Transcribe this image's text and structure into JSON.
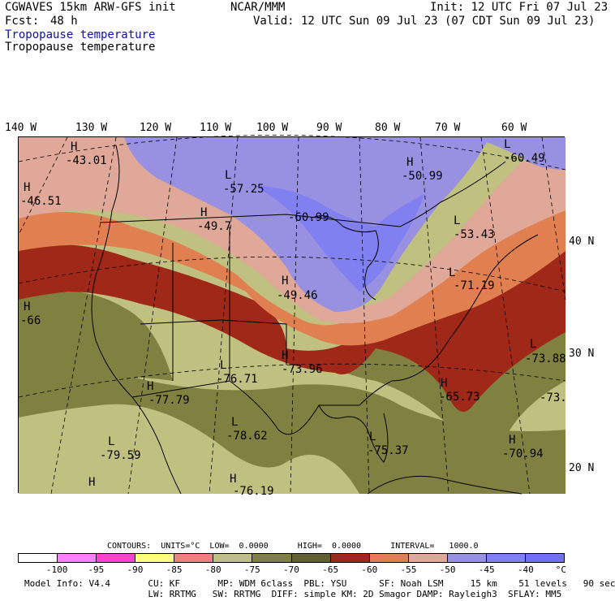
{
  "header": {
    "model": "CGWAVES 15km ARW-GFS init",
    "center": "NCAR/MMM",
    "init": "Init: 12 UTC Fri 07 Jul 23",
    "fcst_label": "Fcst:",
    "fcst_value": "48 h",
    "valid": "Valid: 12 UTC Sun 09 Jul 23 (07 CDT Sun 09 Jul 23)",
    "field_title_1": "Tropopause temperature",
    "field_title_2": "Tropopause temperature"
  },
  "map": {
    "lon_labels": [
      "140 W",
      "130 W",
      "120 W",
      "110 W",
      "100 W",
      "90 W",
      "80 W",
      "70 W",
      "60 W"
    ],
    "lat_labels": [
      "40 N",
      "30 N",
      "20 N"
    ],
    "annotations": [
      {
        "mark": "H",
        "value": "-43.01"
      },
      {
        "mark": "H",
        "value": "-46.51"
      },
      {
        "mark": "L",
        "value": "-57.25"
      },
      {
        "mark": "H",
        "value": "-49.7"
      },
      {
        "mark": "H",
        "value": "-50.99"
      },
      {
        "mark": "L",
        "value": "-60.49"
      },
      {
        "mark": "",
        "value": "-60.99"
      },
      {
        "mark": "L",
        "value": "-53.43"
      },
      {
        "mark": "H",
        "value": "-49.46"
      },
      {
        "mark": "H",
        "value": "-66"
      },
      {
        "mark": "L",
        "value": "-71.19"
      },
      {
        "mark": "L",
        "value": "-76.71"
      },
      {
        "mark": "H",
        "value": "-73.96"
      },
      {
        "mark": "L",
        "value": "-73.88"
      },
      {
        "mark": "H",
        "value": "-77.79"
      },
      {
        "mark": "H",
        "value": "-65.73"
      },
      {
        "mark": "",
        "value": "-73."
      },
      {
        "mark": "L",
        "value": "-78.62"
      },
      {
        "mark": "L",
        "value": "-79.59"
      },
      {
        "mark": "L",
        "value": "-75.37"
      },
      {
        "mark": "H",
        "value": "-70.94"
      },
      {
        "mark": "H",
        "value": "-76.19"
      },
      {
        "mark": "H",
        "value": ""
      }
    ]
  },
  "contours_line": "CONTOURS:  UNITS=°C  LOW=  0.0000      HIGH=  0.0000      INTERVAL=   1000.0",
  "colorbar": {
    "colors": [
      "#ffffff",
      "#ff80ff",
      "#ff40d0",
      "#ffff80",
      "#f08080",
      "#c0c080",
      "#808040",
      "#606030",
      "#a02818",
      "#e08050",
      "#e0a898",
      "#9890e0",
      "#8080f0",
      "#7070f8"
    ],
    "ticks": [
      "-100",
      "-95",
      "-90",
      "-85",
      "-80",
      "-75",
      "-70",
      "-65",
      "-60",
      "-55",
      "-50",
      "-45",
      "-40",
      "°C"
    ]
  },
  "footer": {
    "line1": "Model Info: V4.4       CU: KF       MP: WDM 6class  PBL: YSU      SF: Noah LSM     15 km    51 levels   90 sec",
    "line2": "                       LW: RRTMG   SW: RRTMG  DIFF: simple KM: 2D Smagor DAMP: Rayleigh3  SFLAY: MM5"
  }
}
